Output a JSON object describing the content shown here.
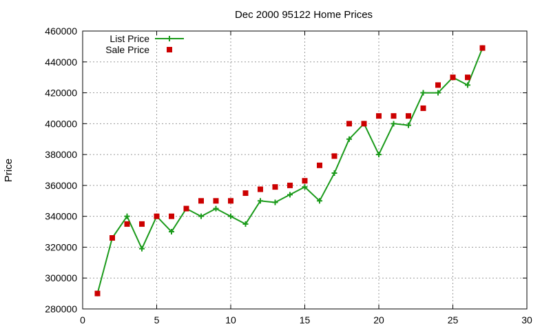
{
  "chart_data": {
    "type": "line",
    "title": "Dec 2000 95122 Home Prices",
    "xlabel": "",
    "ylabel": "Price",
    "xlim": [
      0,
      30
    ],
    "ylim": [
      280000,
      460000
    ],
    "x_ticks": [
      0,
      5,
      10,
      15,
      20,
      25,
      30
    ],
    "y_ticks": [
      280000,
      300000,
      320000,
      340000,
      360000,
      380000,
      400000,
      420000,
      440000,
      460000
    ],
    "grid": true,
    "legend_position": "top-left",
    "series": [
      {
        "name": "List Price",
        "style": "line-with-plus-markers",
        "color": "#1a9a1a",
        "x": [
          1,
          2,
          3,
          4,
          5,
          6,
          7,
          8,
          9,
          10,
          11,
          12,
          13,
          14,
          15,
          16,
          17,
          18,
          19,
          20,
          21,
          22,
          23,
          24,
          25,
          26,
          27
        ],
        "values": [
          290000,
          326000,
          340000,
          319000,
          340000,
          330000,
          345000,
          340000,
          345000,
          340000,
          335000,
          350000,
          349000,
          354000,
          359000,
          350000,
          368000,
          390000,
          400000,
          380000,
          400000,
          399000,
          420000,
          420000,
          430000,
          425000,
          449000
        ]
      },
      {
        "name": "Sale Price",
        "style": "square-markers",
        "color": "#cc0000",
        "x": [
          1,
          2,
          3,
          4,
          5,
          6,
          7,
          8,
          9,
          10,
          11,
          12,
          13,
          14,
          15,
          16,
          17,
          18,
          19,
          20,
          21,
          22,
          23,
          24,
          25,
          26,
          27
        ],
        "values": [
          290000,
          326000,
          335000,
          335000,
          340000,
          340000,
          345000,
          350000,
          350000,
          350000,
          355000,
          357500,
          359000,
          360000,
          363000,
          373000,
          379000,
          400000,
          400000,
          405000,
          405000,
          405000,
          410000,
          425000,
          430000,
          430000,
          449000
        ]
      }
    ]
  }
}
